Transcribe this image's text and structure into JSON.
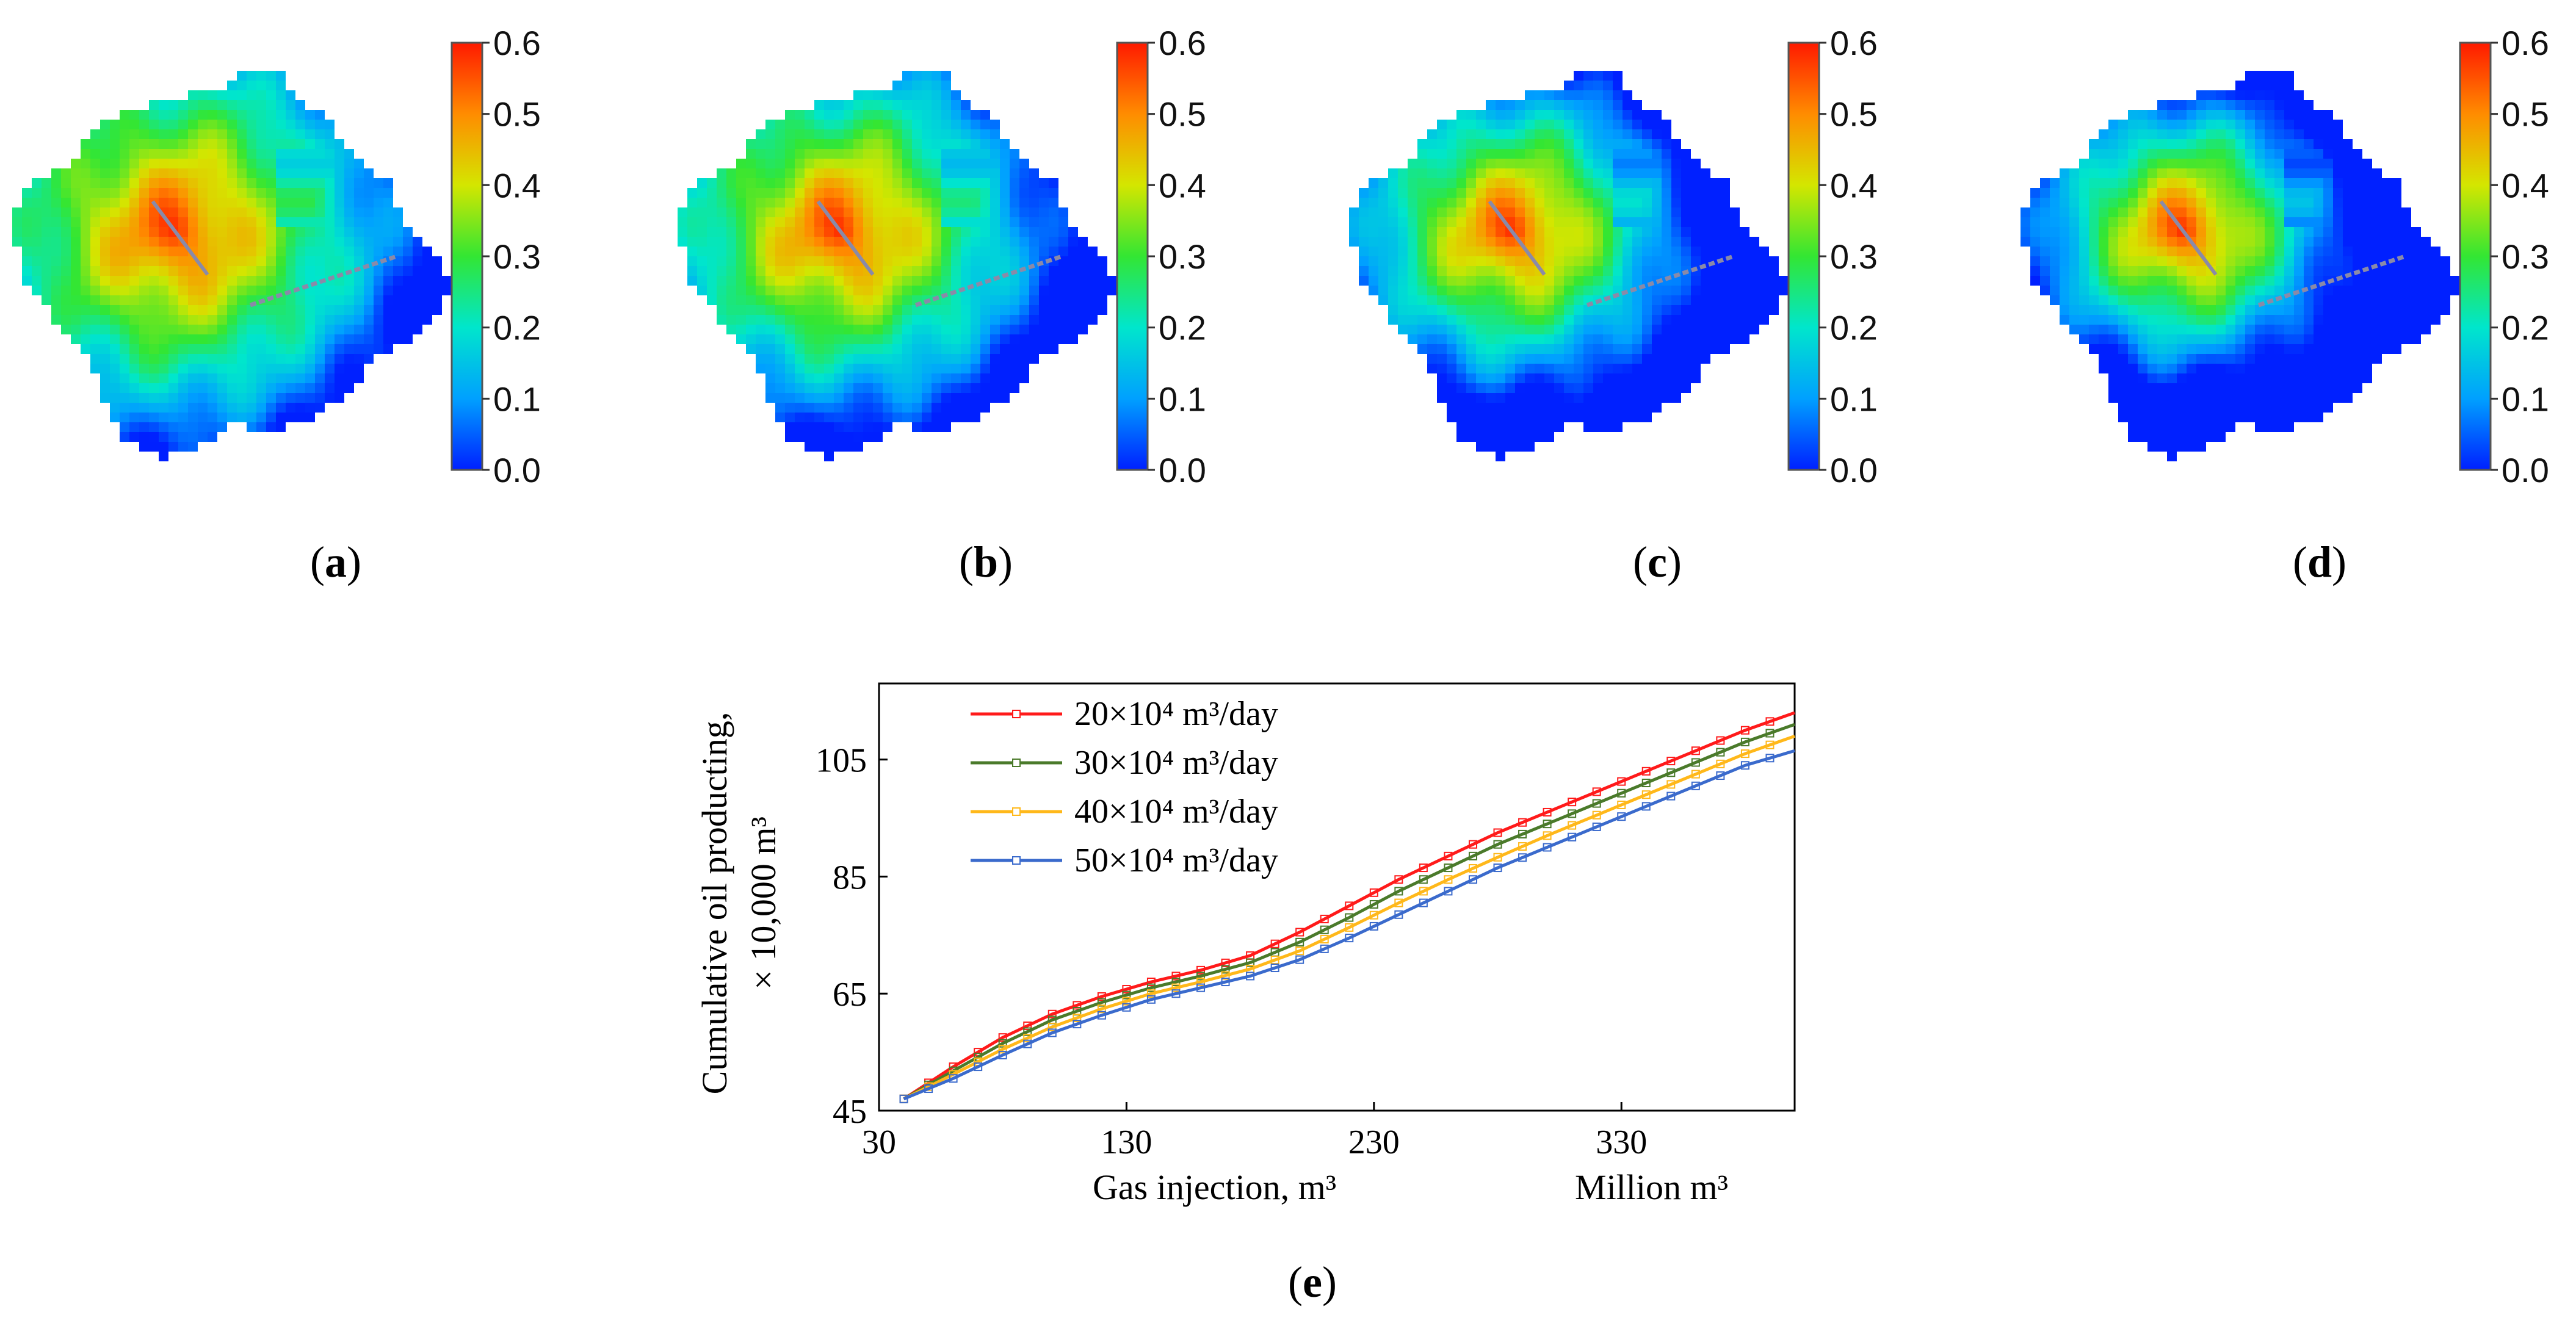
{
  "panels": [
    {
      "id": "a",
      "caption_open": "(",
      "caption_letter": "a",
      "caption_close": ")",
      "blue_extent": 0.25
    },
    {
      "id": "b",
      "caption_open": "(",
      "caption_letter": "b",
      "caption_close": ")",
      "blue_extent": 0.35
    },
    {
      "id": "c",
      "caption_open": "(",
      "caption_letter": "c",
      "caption_close": ")",
      "blue_extent": 0.55
    },
    {
      "id": "d",
      "caption_open": "(",
      "caption_letter": "d",
      "caption_close": ")",
      "blue_extent": 0.7
    }
  ],
  "colorbar": {
    "ticks": [
      "0.6",
      "0.5",
      "0.4",
      "0.3",
      "0.2",
      "0.1",
      "0.0"
    ],
    "colors": [
      "#ff1a00",
      "#ff8c00",
      "#d4e600",
      "#33e633",
      "#00e6cc",
      "#00a0ff",
      "#0020ff"
    ]
  },
  "caption_e": {
    "open": "(",
    "letter": "e",
    "close": ")"
  },
  "chart_data": {
    "type": "line",
    "title": "",
    "xlabel": "Gas injection, m³",
    "xlabel_unit": "Million m³",
    "ylabel_line1": "Cumulative oil producting,",
    "ylabel_line2": "× 10,000 m³",
    "xlim": [
      30,
      400
    ],
    "ylim": [
      45,
      118
    ],
    "xticks": [
      30,
      130,
      230,
      330
    ],
    "yticks": [
      45,
      65,
      85,
      105
    ],
    "x": [
      40,
      60,
      80,
      100,
      120,
      140,
      160,
      180,
      200,
      220,
      240,
      260,
      280,
      300,
      320,
      340,
      360,
      380,
      400
    ],
    "series": [
      {
        "name": "20×10⁴ m³/day",
        "color": "#ff1a1a",
        "values": [
          47,
          52.5,
          57.5,
          61.5,
          64.5,
          67,
          69,
          71.5,
          75.5,
          80,
          84.5,
          88.5,
          92.5,
          96,
          99.5,
          103,
          106.5,
          110,
          113
        ]
      },
      {
        "name": "30×10⁴ m³/day",
        "color": "#4a7a2a",
        "values": [
          47,
          51.8,
          56.5,
          60.5,
          63.5,
          66,
          68,
          70.3,
          73.8,
          78,
          82.5,
          86.5,
          90.5,
          94,
          97.5,
          101,
          104.5,
          108,
          111
        ]
      },
      {
        "name": "40×10⁴ m³/day",
        "color": "#ffb81a",
        "values": [
          47,
          51.2,
          55.5,
          59.3,
          62.4,
          65,
          67,
          69.2,
          72.3,
          76.3,
          80.5,
          84.5,
          88.3,
          92,
          95.5,
          99,
          102.5,
          106,
          109
        ]
      },
      {
        "name": "50×10⁴ m³/day",
        "color": "#3a6acc",
        "values": [
          47,
          50.5,
          54.5,
          58.3,
          61.3,
          64,
          66,
          68,
          70.8,
          74.5,
          78.5,
          82.5,
          86.5,
          90,
          93.5,
          97,
          100.5,
          104,
          106.5
        ]
      }
    ]
  }
}
